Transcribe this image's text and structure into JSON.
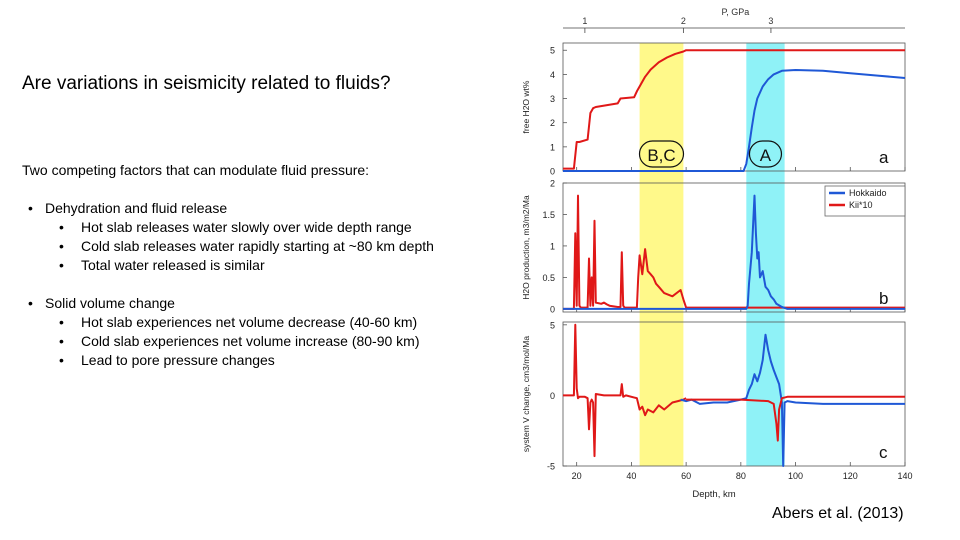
{
  "slide": {
    "title": "Are variations in seismicity related to fluids?",
    "intro": "Two competing factors that can modulate fluid pressure:",
    "bullets": [
      {
        "text": "Dehydration and fluid release",
        "sub": [
          "Hot slab releases water slowly over wide depth range",
          "Cold slab releases water rapidly starting at ~80 km depth",
          "Total water released is similar"
        ]
      },
      {
        "text": "Solid volume change",
        "sub": [
          "Hot slab experiences net volume decrease (40-60 km)",
          "Cold slab experiences net volume increase (80-90 km)",
          "Lead to pore pressure changes"
        ]
      }
    ],
    "citation": "Abers et al. (2013)"
  },
  "chart_data": {
    "type": "line",
    "top_axis": {
      "label": "P, GPa",
      "ticks": [
        1,
        2,
        3
      ],
      "tick_depths_km": [
        23,
        59,
        91
      ]
    },
    "xlabel": "Depth, km",
    "xlim": [
      15,
      140
    ],
    "xticks": [
      20,
      40,
      60,
      80,
      100,
      120,
      140
    ],
    "highlight_bands": [
      {
        "label": "B,C",
        "from_km": 43,
        "to_km": 59,
        "color": "#fff98a"
      },
      {
        "label": "A",
        "from_km": 82,
        "to_km": 96,
        "color": "#8ff2f7"
      }
    ],
    "legend": {
      "placement": "top-right",
      "entries": [
        "Hokkaido",
        "Kii*10"
      ]
    },
    "colors": {
      "Hokkaido": "#1f58d6",
      "Kii*10": "#e01818"
    },
    "panels": [
      {
        "label": "a",
        "ylabel": "free H2O wt%",
        "ylim": [
          0,
          5.3
        ],
        "yticks": [
          0,
          1,
          2,
          3,
          4,
          5
        ],
        "series": [
          {
            "name": "Kii*10",
            "x": [
              15,
              19,
              20,
              21,
              24,
              25,
              26,
              27,
              35,
              36,
              41,
              42,
              43,
              45,
              47,
              50,
              53,
              56,
              59,
              60,
              140
            ],
            "y": [
              0.1,
              0.1,
              1.2,
              1.2,
              1.3,
              2.4,
              2.6,
              2.65,
              2.8,
              3.0,
              3.05,
              3.3,
              3.5,
              3.9,
              4.2,
              4.5,
              4.7,
              4.85,
              4.95,
              5.0,
              5.0
            ]
          },
          {
            "name": "Hokkaido",
            "x": [
              15,
              81,
              82,
              83,
              84,
              85,
              86,
              88,
              90,
              92,
              95,
              100,
              110,
              120,
              130,
              140
            ],
            "y": [
              0,
              0,
              0.3,
              1.0,
              1.8,
              2.5,
              3.0,
              3.5,
              3.8,
              4.0,
              4.15,
              4.18,
              4.15,
              4.05,
              3.95,
              3.85
            ]
          }
        ]
      },
      {
        "label": "b",
        "ylabel": "H2O production, m3/m2/Ma",
        "ylim": [
          -0.05,
          2.0
        ],
        "yticks": [
          0,
          0.5,
          1,
          1.5,
          2
        ],
        "series": [
          {
            "name": "Kii*10",
            "x": [
              15,
              19,
              19.5,
              20,
              20.5,
              21,
              21.5,
              24,
              24.5,
              25,
              25.5,
              26,
              26.5,
              27,
              29,
              30,
              31,
              32,
              35,
              36,
              36.5,
              37,
              37.5,
              38,
              42,
              42.5,
              43,
              44,
              45,
              46,
              47,
              48,
              49,
              50,
              52,
              55,
              58,
              59,
              60,
              140
            ],
            "y": [
              0,
              0,
              1.2,
              0.05,
              1.8,
              0.05,
              0.02,
              0.02,
              0.8,
              0.05,
              0.5,
              0.05,
              1.4,
              0.1,
              0.08,
              0.1,
              0.07,
              0.05,
              0.03,
              0.03,
              0.9,
              0.05,
              0.02,
              0.02,
              0.02,
              0.5,
              0.85,
              0.55,
              0.95,
              0.6,
              0.55,
              0.5,
              0.4,
              0.35,
              0.25,
              0.2,
              0.3,
              0.15,
              0.02,
              0.02
            ]
          },
          {
            "name": "Hokkaido",
            "x": [
              15,
              82,
              82.5,
              83,
              84,
              85,
              85.5,
              86,
              86.5,
              87,
              88,
              89,
              90,
              91,
              92,
              93,
              95,
              97,
              140
            ],
            "y": [
              0,
              0,
              0.05,
              0.4,
              0.9,
              1.8,
              1.2,
              0.8,
              0.9,
              0.5,
              0.6,
              0.35,
              0.3,
              0.2,
              0.15,
              0.08,
              0.03,
              0,
              0
            ]
          }
        ]
      },
      {
        "label": "c",
        "ylabel": "system V change, cm3/mol/Ma",
        "ylim": [
          -5,
          5.2
        ],
        "yticks": [
          -5,
          0,
          5
        ],
        "series": [
          {
            "name": "Kii*10",
            "x": [
              15,
              19,
              19.5,
              20,
              20.5,
              21,
              23,
              24,
              24.5,
              25,
              25.5,
              26,
              26.5,
              27,
              30,
              35,
              36,
              36.5,
              37,
              38,
              42,
              43,
              44,
              45,
              46,
              48,
              50,
              52,
              55,
              57,
              59,
              60
            ],
            "y": [
              0,
              0,
              5.0,
              0.5,
              -0.2,
              -0.1,
              -0.1,
              -0.2,
              -2.4,
              -0.5,
              -0.3,
              -0.5,
              -4.3,
              0.1,
              0.0,
              0.0,
              0.0,
              0.8,
              -0.1,
              0.0,
              -0.2,
              -1.0,
              -0.8,
              -1.4,
              -1.0,
              -1.2,
              -0.7,
              -1.0,
              -0.5,
              -0.4,
              -0.3,
              -0.2
            ]
          },
          {
            "name": "Hokkaido",
            "x": [
              58,
              60,
              62,
              65,
              70,
              75,
              80,
              82,
              83,
              84,
              85,
              86,
              87,
              88,
              89,
              90,
              91,
              92,
              93,
              94,
              95,
              95.5,
              96,
              97,
              100,
              110,
              120,
              130,
              140
            ],
            "y": [
              -0.3,
              -0.4,
              -0.3,
              -0.6,
              -0.5,
              -0.5,
              -0.3,
              -0.2,
              0.4,
              0.8,
              1.5,
              1.0,
              1.6,
              2.5,
              4.3,
              3.2,
              2.4,
              1.8,
              1.3,
              0.8,
              -0.5,
              -5.0,
              -0.5,
              -0.4,
              -0.5,
              -0.6,
              -0.6,
              -0.6,
              -0.6
            ]
          },
          {
            "name": "Kii*10",
            "x": [
              60,
              70,
              80,
              90,
              92,
              93,
              93.5,
              94,
              95,
              97,
              140
            ],
            "y": [
              -0.3,
              -0.3,
              -0.3,
              -0.4,
              -0.6,
              -2.0,
              -3.2,
              -1.0,
              -0.2,
              -0.1,
              -0.1
            ]
          }
        ]
      }
    ]
  }
}
